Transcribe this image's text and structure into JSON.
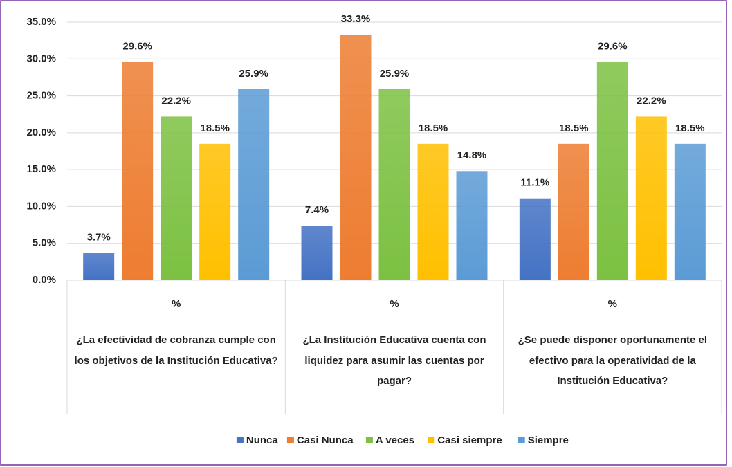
{
  "chart_data": {
    "type": "bar",
    "group_labels": [
      "%",
      "%",
      "%"
    ],
    "categories": [
      "¿La efectividad de cobranza cumple con los objetivos de la Institución Educativa?",
      "¿La Institución Educativa cuenta con liquidez para asumir las cuentas por pagar?",
      "¿Se puede disponer oportunamente el efectivo para la operatividad de la Institución Educativa?"
    ],
    "series": [
      {
        "name": "Nunca",
        "color": "#4472c4",
        "values": [
          3.7,
          7.4,
          11.1
        ],
        "value_labels": [
          "3.7%",
          "7.4%",
          "11.1%"
        ]
      },
      {
        "name": "Casi Nunca",
        "color": "#ed7d31",
        "values": [
          29.6,
          33.3,
          18.5
        ],
        "value_labels": [
          "29.6%",
          "33.3%",
          "18.5%"
        ]
      },
      {
        "name": "A veces",
        "color": "#7cc142",
        "values": [
          22.2,
          25.9,
          29.6
        ],
        "value_labels": [
          "22.2%",
          "25.9%",
          "29.6%"
        ]
      },
      {
        "name": "Casi siempre",
        "color": "#ffc000",
        "values": [
          18.5,
          18.5,
          22.2
        ],
        "value_labels": [
          "18.5%",
          "18.5%",
          "22.2%"
        ]
      },
      {
        "name": "Siempre",
        "color": "#5b9bd5",
        "values": [
          25.9,
          14.8,
          18.5
        ],
        "value_labels": [
          "25.9%",
          "14.8%",
          "18.5%"
        ]
      }
    ],
    "ylim": [
      0,
      35
    ],
    "yticks": [
      {
        "value": 0,
        "label": "0.0%"
      },
      {
        "value": 5,
        "label": "5.0%"
      },
      {
        "value": 10,
        "label": "10.0%"
      },
      {
        "value": 15,
        "label": "15.0%"
      },
      {
        "value": 20,
        "label": "20.0%"
      },
      {
        "value": 25,
        "label": "25.0%"
      },
      {
        "value": 30,
        "label": "30.0%"
      },
      {
        "value": 35,
        "label": "35.0%"
      }
    ],
    "grid": true,
    "legend": "bottom"
  }
}
